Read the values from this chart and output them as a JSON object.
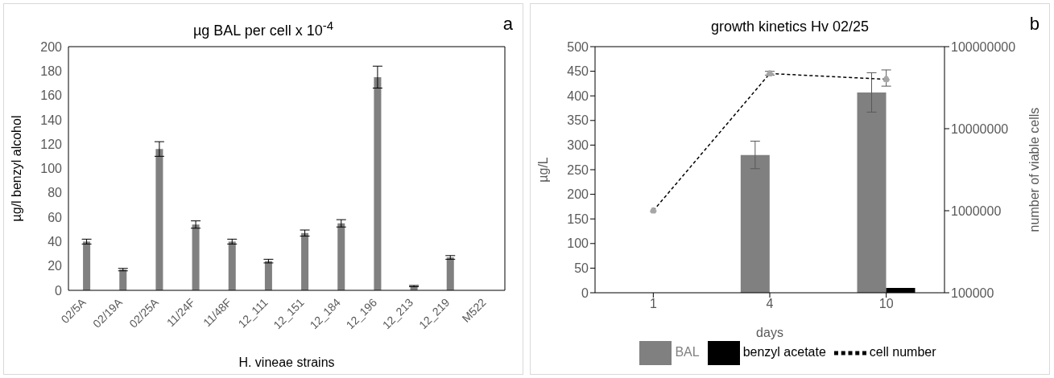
{
  "chart_data": [
    {
      "type": "bar",
      "title": "µg BAL per cell x 10$^{-4}$",
      "xlabel": "H. vineae strains",
      "ylabel": "µg/l benzyl alcohol",
      "annotations": [
        "a"
      ],
      "categories": [
        "02/5A",
        "02/19A",
        "02/25A",
        "11/24F",
        "11/48F",
        "12_111",
        "12_151",
        "12_184",
        "12_196",
        "12_213",
        "12_219",
        "M522"
      ],
      "series": [
        {
          "color": "#808080",
          "values": [
            40,
            17,
            116,
            54,
            40,
            24,
            47,
            55,
            175,
            3.5,
            27,
            0
          ],
          "errors": [
            2,
            1,
            6,
            3,
            2,
            1.5,
            2.5,
            3,
            9,
            0.5,
            1.5,
            null
          ]
        }
      ],
      "ylim": [
        0,
        200
      ],
      "yticks": [
        0,
        20,
        40,
        60,
        80,
        100,
        120,
        140,
        160,
        180,
        200
      ]
    },
    {
      "type": "bar",
      "title": "growth kinetics Hv 02/25",
      "xlabel": "days",
      "ylabel": "µg/L",
      "y2label": "number of viable cells",
      "annotations": [
        "b"
      ],
      "categories": [
        "1",
        "4",
        "10"
      ],
      "series": [
        {
          "name": "BAL",
          "color": "#808080",
          "values": [
            0,
            280,
            407
          ],
          "errors": [
            null,
            28,
            40
          ]
        },
        {
          "name": "benzyl acetate",
          "color": "#000000",
          "values": [
            0,
            0,
            10
          ]
        },
        {
          "name": "cell number",
          "type": "line",
          "axis": "y2",
          "color": "#000000",
          "values": [
            1000000,
            47000000,
            40000000
          ],
          "errors": [
            null,
            [
              45000000,
              50000000
            ],
            [
              33000000,
              52000000
            ]
          ]
        }
      ],
      "ylim": [
        0,
        500
      ],
      "yticks": [
        0,
        50,
        100,
        150,
        200,
        250,
        300,
        350,
        400,
        450,
        500
      ],
      "y2lim": [
        100000,
        100000000
      ],
      "y2ticks": [
        100000,
        1000000,
        10000000,
        100000000
      ],
      "log": "y2",
      "legend": "bottom",
      "marker": "circle",
      "line_style": "dashed"
    }
  ]
}
